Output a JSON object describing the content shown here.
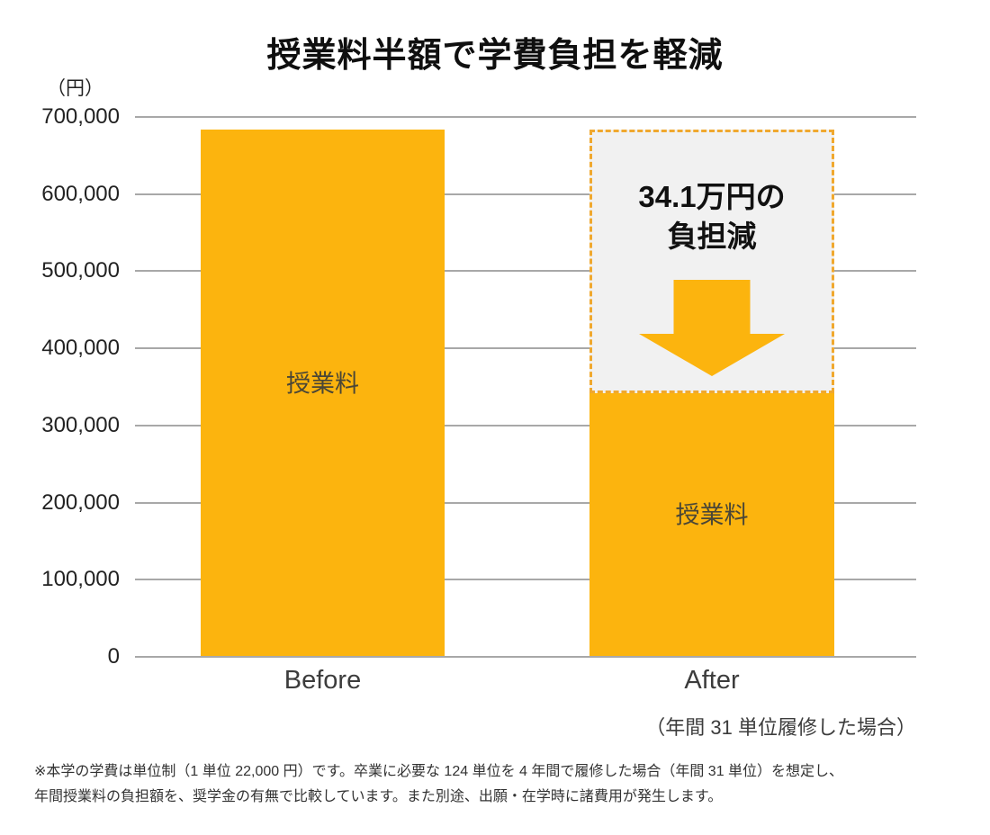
{
  "chart_data": {
    "type": "bar",
    "title": "授業料半額で学費負担を軽減",
    "unit": "（円）",
    "categories": [
      "Before",
      "After"
    ],
    "values": [
      682000,
      341000
    ],
    "bar_value_label": "授業料",
    "ylim": [
      0,
      700000
    ],
    "yticks": [
      {
        "value": 700000,
        "label": "700,000"
      },
      {
        "value": 600000,
        "label": "600,000"
      },
      {
        "value": 500000,
        "label": "500,000"
      },
      {
        "value": 400000,
        "label": "400,000"
      },
      {
        "value": 300000,
        "label": "300,000"
      },
      {
        "value": 200000,
        "label": "200,000"
      },
      {
        "value": 100000,
        "label": "100,000"
      },
      {
        "value": 0,
        "label": "0"
      }
    ],
    "grid": true,
    "legend_position": "none",
    "annotation": {
      "line1": "34.1万円の",
      "line2": "負担減",
      "depicts": "difference between Before and After bars, 341,000 yen reduction"
    },
    "x_caption": "（年間 31 単位履修した場合）"
  },
  "footnote": {
    "line1": "※本学の学費は単位制（1 単位 22,000 円）です。卒業に必要な 124 単位を 4 年間で履修した場合（年間 31 単位）を想定し、",
    "line2": "年間授業料の負担額を、奨学金の有無で比較しています。また別途、出願・在学時に諸費用が発生します。"
  },
  "colors": {
    "bar": "#FCB40E",
    "arrow": "#FCB40E",
    "dashed_border": "#F0A82E",
    "box_fill": "#F1F1F1",
    "gridline": "#A8A8A8"
  }
}
